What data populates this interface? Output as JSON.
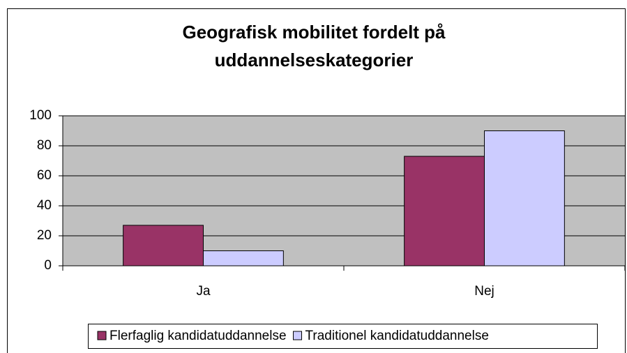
{
  "chart_data": {
    "type": "bar",
    "title": [
      "Geografisk mobilitet fordelt på",
      "uddannelseskategorier"
    ],
    "categories": [
      "Ja",
      "Nej"
    ],
    "series": [
      {
        "name": "Flerfaglig kandidatuddannelse",
        "color": "#993366",
        "values": [
          27,
          73
        ]
      },
      {
        "name": "Traditionel kandidatuddannelse",
        "color": "#CCCCFF",
        "values": [
          10,
          90
        ]
      }
    ],
    "ylim": [
      0,
      100
    ],
    "yticks": [
      0,
      20,
      40,
      60,
      80,
      100
    ],
    "grid": true,
    "legend": "bottom"
  }
}
